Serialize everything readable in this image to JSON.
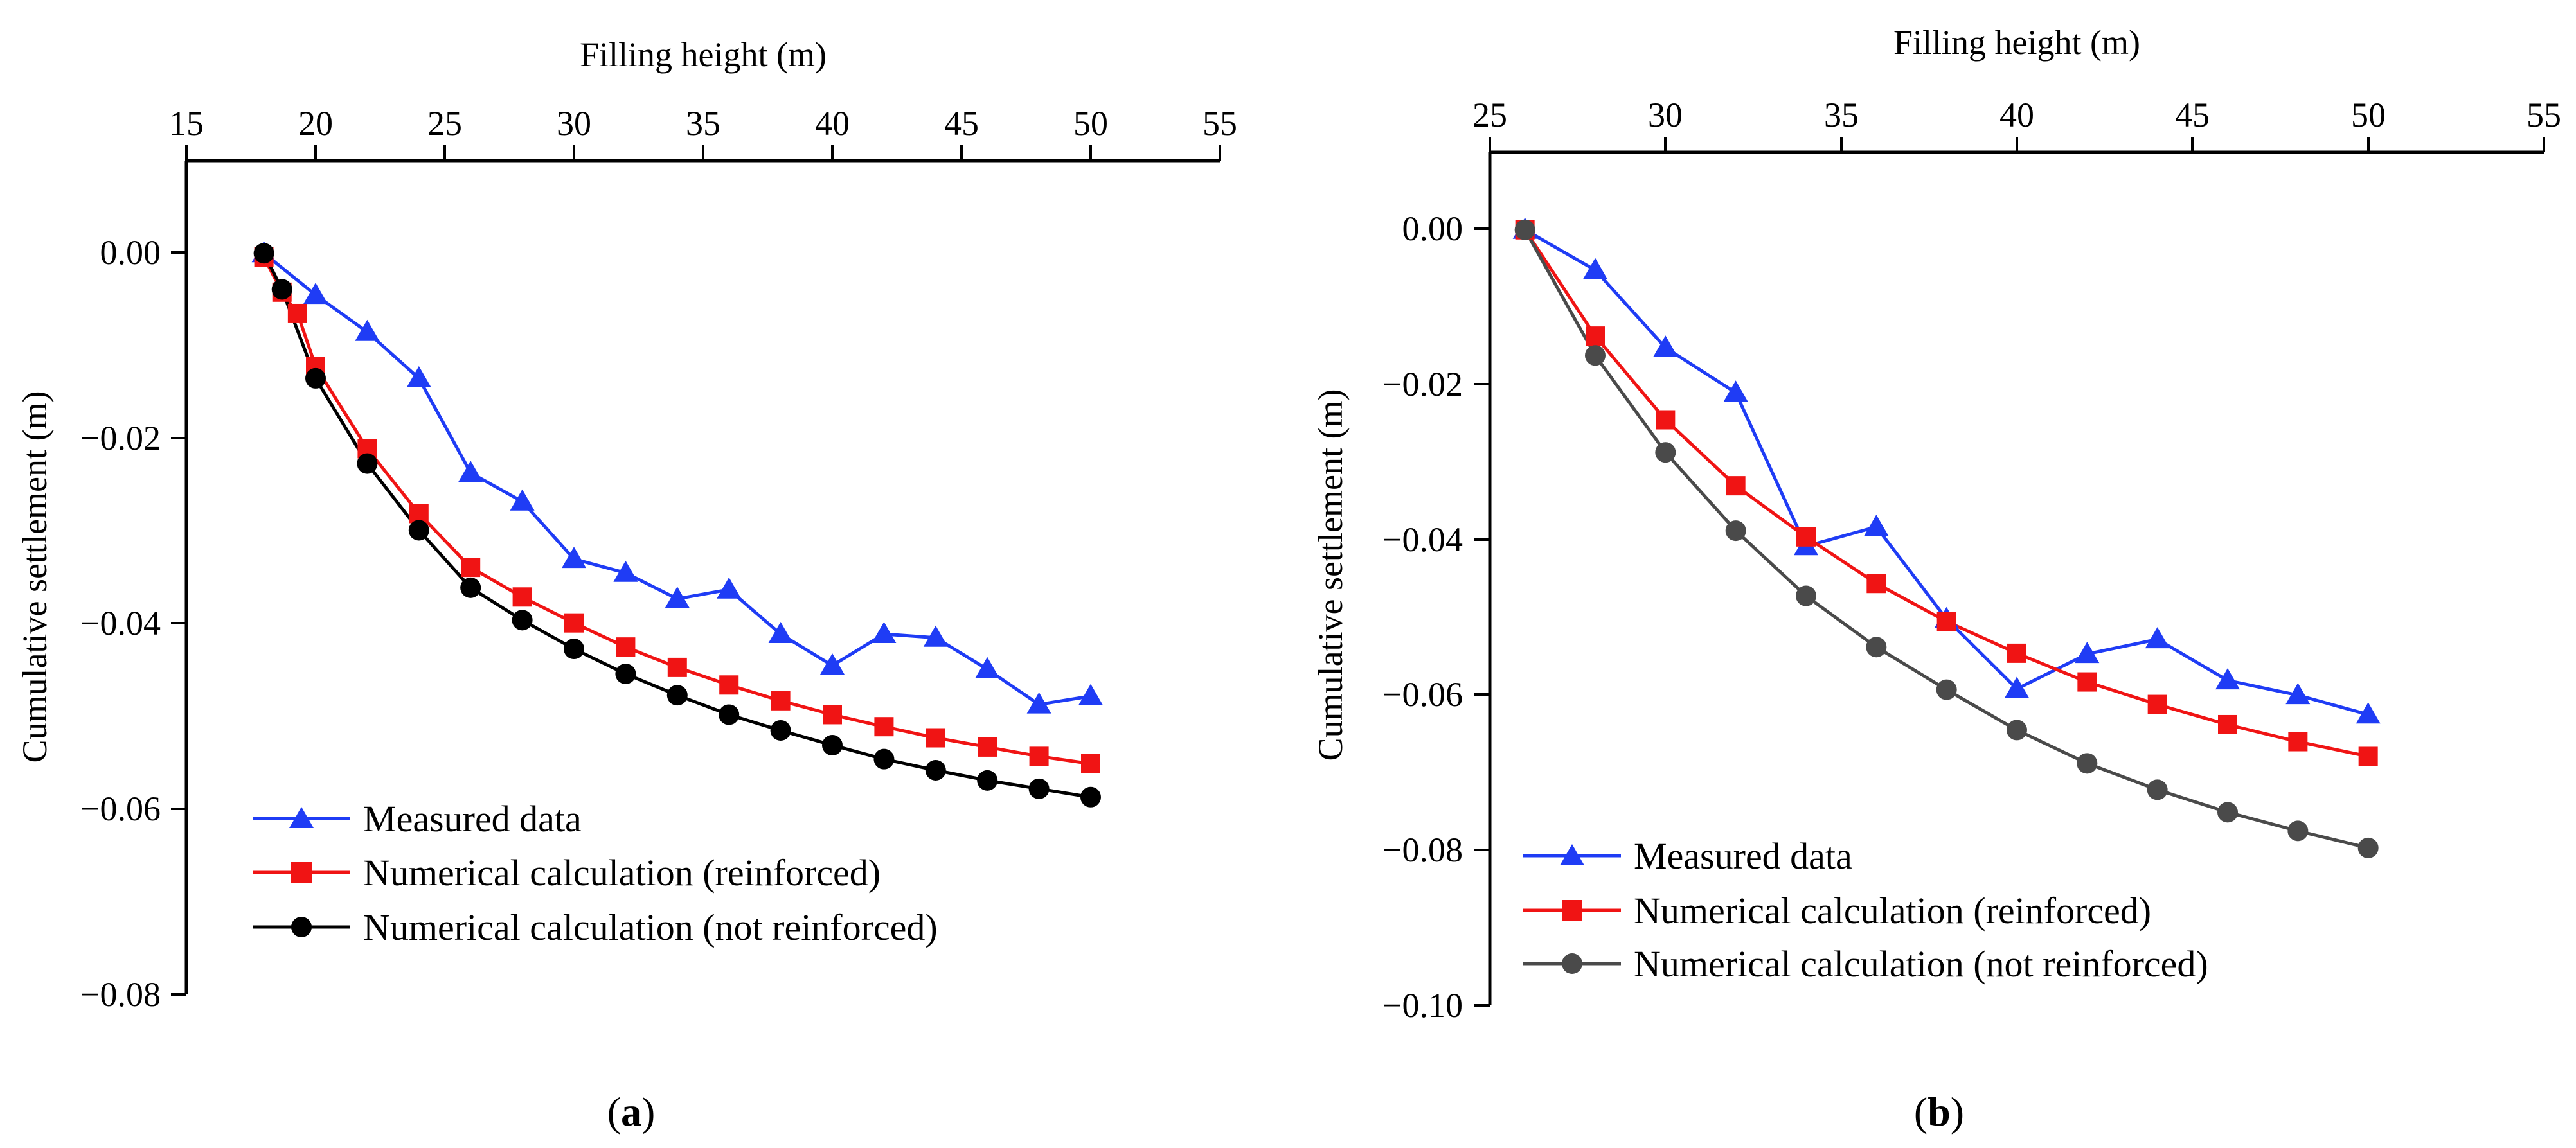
{
  "chart_data": [
    {
      "id": "a",
      "type": "line",
      "panel_label": "a",
      "xlabel": "Filling height (m)",
      "ylabel": "Cumulative settlement (m)",
      "xlim": [
        15,
        55
      ],
      "ylim": [
        -0.08,
        0.01
      ],
      "xticks": [
        "15",
        "20",
        "25",
        "30",
        "35",
        "40",
        "45",
        "50",
        "55"
      ],
      "yticks": [
        "0.00",
        "−0.02",
        "−0.04",
        "−0.06",
        "−0.08"
      ],
      "xtick_values": [
        15,
        20,
        25,
        30,
        35,
        40,
        45,
        50,
        55
      ],
      "ytick_values": [
        0,
        -0.02,
        -0.04,
        -0.06,
        -0.08
      ],
      "series": [
        {
          "name": "Measured data",
          "color": "#1f3cf5",
          "marker": "triangle",
          "x": [
            18,
            20,
            22,
            24,
            26,
            28,
            30,
            32,
            34,
            36,
            38,
            40,
            42,
            44,
            46,
            48,
            50
          ],
          "y": [
            0.0,
            -0.0045,
            -0.0085,
            -0.0135,
            -0.0237,
            -0.0268,
            -0.033,
            -0.0345,
            -0.0373,
            -0.0363,
            -0.0411,
            -0.0445,
            -0.0411,
            -0.0415,
            -0.0449,
            -0.0487,
            -0.0478
          ]
        },
        {
          "name": "Numerical calculation (reinforced)",
          "color": "#f01414",
          "marker": "square",
          "x": [
            18,
            18.7,
            19.3,
            20,
            22,
            24,
            26,
            28,
            30,
            32,
            34,
            36,
            38,
            40,
            42,
            44,
            46,
            48,
            50
          ],
          "y": [
            -0.0004,
            -0.0042,
            -0.0065,
            -0.0122,
            -0.0211,
            -0.0281,
            -0.0339,
            -0.0371,
            -0.0399,
            -0.0425,
            -0.0447,
            -0.0466,
            -0.0483,
            -0.0498,
            -0.0511,
            -0.0523,
            -0.0533,
            -0.0543,
            -0.0551
          ]
        },
        {
          "name": "Numerical calculation (not reinforced)",
          "color": "#000000",
          "marker": "circle",
          "x": [
            18,
            18.7,
            20,
            22,
            24,
            26,
            28,
            30,
            32,
            34,
            36,
            38,
            40,
            42,
            44,
            46,
            48,
            50
          ],
          "y": [
            0.0,
            -0.0039,
            -0.0135,
            -0.0227,
            -0.0299,
            -0.0361,
            -0.0396,
            -0.0427,
            -0.0454,
            -0.0477,
            -0.0498,
            -0.0515,
            -0.0531,
            -0.0546,
            -0.0558,
            -0.0569,
            -0.0578,
            -0.0587
          ]
        }
      ]
    },
    {
      "id": "b",
      "type": "line",
      "panel_label": "b",
      "xlabel": "Filling height (m)",
      "ylabel": "Cumulative settlement (m)",
      "xlim": [
        25,
        55
      ],
      "ylim": [
        -0.1,
        0.01
      ],
      "xticks": [
        "25",
        "30",
        "35",
        "40",
        "45",
        "50",
        "55"
      ],
      "yticks": [
        "0.00",
        "−0.02",
        "−0.04",
        "−0.06",
        "−0.08",
        "−0.10"
      ],
      "xtick_values": [
        25,
        30,
        35,
        40,
        45,
        50,
        55
      ],
      "ytick_values": [
        0,
        -0.02,
        -0.04,
        -0.06,
        -0.08,
        -0.1
      ],
      "series": [
        {
          "name": "Measured data",
          "color": "#1f3cf5",
          "marker": "triangle",
          "x": [
            26,
            28,
            30,
            32,
            34,
            36,
            38,
            40,
            42,
            44,
            46,
            48,
            50
          ],
          "y": [
            0.0,
            -0.0052,
            -0.0152,
            -0.021,
            -0.0408,
            -0.0383,
            -0.0502,
            -0.0592,
            -0.0547,
            -0.0528,
            -0.0581,
            -0.06,
            -0.0625
          ]
        },
        {
          "name": "Numerical calculation (reinforced)",
          "color": "#f01414",
          "marker": "square",
          "x": [
            26,
            28,
            30,
            32,
            34,
            36,
            38,
            40,
            42,
            44,
            46,
            48,
            50
          ],
          "y": [
            0.0,
            -0.0137,
            -0.0245,
            -0.033,
            -0.0396,
            -0.0456,
            -0.0505,
            -0.0546,
            -0.0583,
            -0.0612,
            -0.0638,
            -0.066,
            -0.0679
          ]
        },
        {
          "name": "Numerical calculation (not reinforced)",
          "color": "#4a4a4a",
          "marker": "circle",
          "x": [
            26,
            28,
            30,
            32,
            34,
            36,
            38,
            40,
            42,
            44,
            46,
            48,
            50
          ],
          "y": [
            0.0,
            -0.0162,
            -0.0287,
            -0.0388,
            -0.0472,
            -0.0538,
            -0.0593,
            -0.0645,
            -0.0688,
            -0.0722,
            -0.0751,
            -0.0775,
            -0.0797
          ]
        }
      ]
    }
  ]
}
